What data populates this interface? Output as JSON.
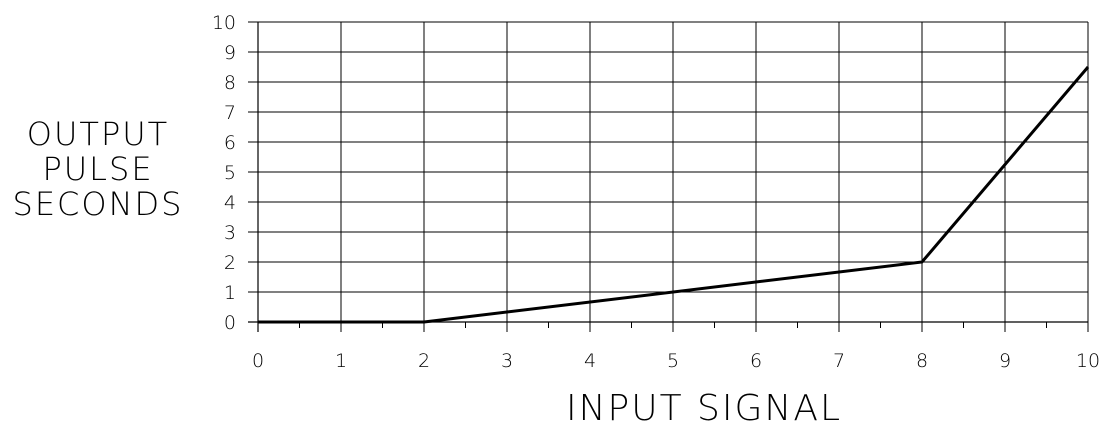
{
  "chart_data": {
    "type": "line",
    "xlabel": "INPUT SIGNAL",
    "ylabel_lines": [
      "OUTPUT",
      "PULSE",
      "SECONDS"
    ],
    "xlim": [
      0,
      10
    ],
    "ylim": [
      0,
      10
    ],
    "x_ticks": [
      "0",
      "1",
      "2",
      "3",
      "4",
      "5",
      "6",
      "7",
      "8",
      "9",
      "10"
    ],
    "y_ticks": [
      "0",
      "1",
      "2",
      "3",
      "4",
      "5",
      "6",
      "7",
      "8",
      "9",
      "10"
    ],
    "grid": true,
    "series": [
      {
        "x": [
          0,
          2,
          8,
          10
        ],
        "y": [
          0,
          0,
          2,
          8.5
        ]
      }
    ]
  }
}
